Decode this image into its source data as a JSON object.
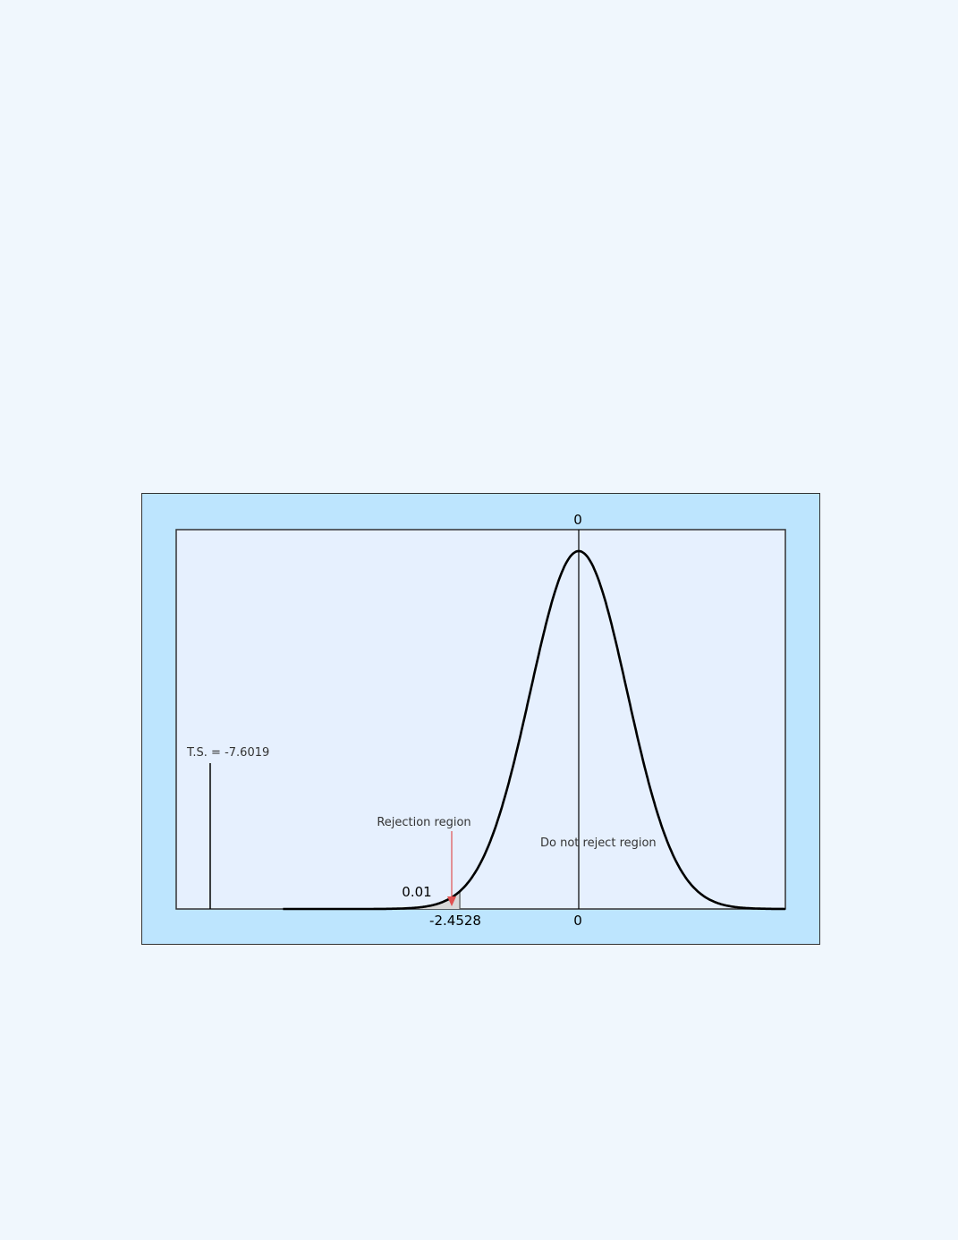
{
  "chart_data": {
    "type": "line",
    "distribution": "standard normal / t density curve",
    "mean": 0,
    "critical_value": -2.4528,
    "alpha": 0.01,
    "test_statistic": -7.6019,
    "x_range": [
      -8.3,
      4.3
    ],
    "tick_labels_top": [
      "0"
    ],
    "tick_labels_bottom": [
      "-2.4528",
      "0"
    ],
    "alpha_label": "0.01",
    "ts_label": "T.S. = -7.6019",
    "rejection_label": "Rejection region",
    "accept_label": "Do not reject region",
    "colors": {
      "frame": "#bde5fe",
      "plot": "#e6f0fe",
      "curve": "#000000",
      "arrow": "#e05050",
      "shade": "#d8d8d8",
      "page": "#f0f7fd"
    }
  }
}
